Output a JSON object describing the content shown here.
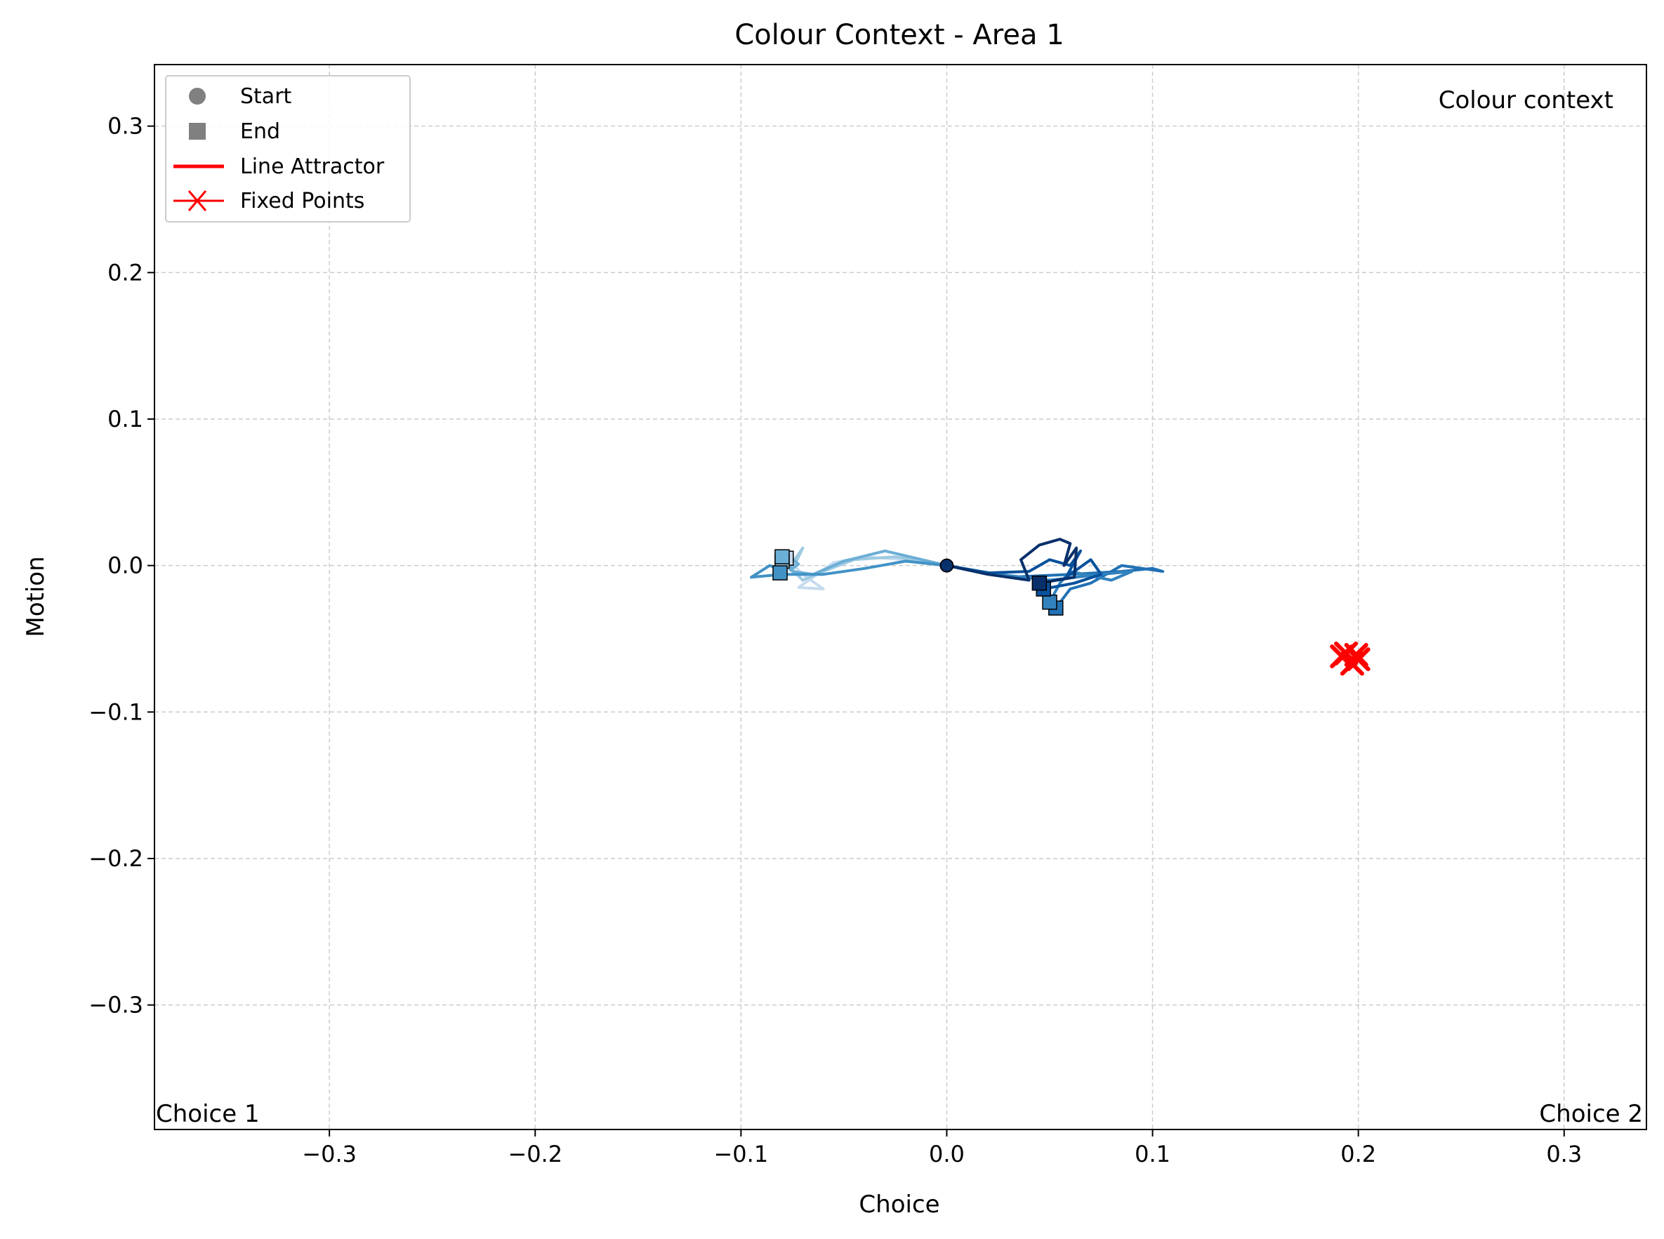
{
  "chart_data": {
    "type": "line",
    "title": "Colour Context - Area 1",
    "xlabel": "Choice",
    "ylabel": "Motion",
    "xlim": [
      -0.385,
      0.34
    ],
    "ylim": [
      -0.385,
      0.342
    ],
    "xticks": [
      -0.3,
      -0.2,
      -0.1,
      0.0,
      0.1,
      0.2,
      0.3
    ],
    "yticks": [
      -0.3,
      -0.2,
      -0.1,
      0.0,
      0.1,
      0.2,
      0.3
    ],
    "xtick_labels": [
      "−0.3",
      "−0.2",
      "−0.1",
      "0.0",
      "0.1",
      "0.2",
      "0.3"
    ],
    "ytick_labels": [
      "−0.3",
      "−0.2",
      "−0.1",
      "0.0",
      "0.1",
      "0.2",
      "0.3"
    ],
    "grid": true,
    "legend_position": "top-left",
    "legend": [
      {
        "label": "Start",
        "marker": "circle",
        "color": "#808080"
      },
      {
        "label": "End",
        "marker": "square",
        "color": "#808080"
      },
      {
        "label": "Line Attractor",
        "marker": "line",
        "color": "#ff0000"
      },
      {
        "label": "Fixed Points",
        "marker": "x-line",
        "color": "#ff0000"
      }
    ],
    "annotations": {
      "context": "Colour context",
      "left_choice": "Choice 1",
      "right_choice": "Choice 2"
    },
    "series": [
      {
        "color": "#c6dbef",
        "points": [
          [
            0,
            0
          ],
          [
            -0.02,
            0.004
          ],
          [
            -0.04,
            0.006
          ],
          [
            -0.055,
            0.002
          ],
          [
            -0.065,
            -0.008
          ],
          [
            -0.072,
            -0.015
          ],
          [
            -0.06,
            -0.016
          ],
          [
            -0.07,
            -0.006
          ],
          [
            -0.078,
            0.005
          ]
        ]
      },
      {
        "color": "#9ecae1",
        "points": [
          [
            0,
            0
          ],
          [
            -0.025,
            0.006
          ],
          [
            -0.045,
            0.004
          ],
          [
            -0.06,
            -0.004
          ],
          [
            -0.07,
            -0.01
          ],
          [
            -0.075,
            -0.003
          ],
          [
            -0.07,
            0.012
          ],
          [
            -0.074,
            0.004
          ],
          [
            -0.08,
            0.003
          ]
        ]
      },
      {
        "color": "#6baed6",
        "points": [
          [
            0,
            0
          ],
          [
            -0.03,
            0.01
          ],
          [
            -0.05,
            0.003
          ],
          [
            -0.065,
            -0.006
          ],
          [
            -0.075,
            -0.004
          ],
          [
            -0.078,
            0.008
          ],
          [
            -0.072,
            0.001
          ],
          [
            -0.076,
            -0.003
          ],
          [
            -0.08,
            0.006
          ]
        ]
      },
      {
        "color": "#4292c6",
        "points": [
          [
            0,
            0
          ],
          [
            -0.02,
            0.003
          ],
          [
            -0.04,
            -0.002
          ],
          [
            -0.06,
            -0.006
          ],
          [
            -0.08,
            -0.006
          ],
          [
            -0.095,
            -0.008
          ],
          [
            -0.086,
            0.0
          ],
          [
            -0.08,
            -0.003
          ],
          [
            -0.081,
            -0.005
          ]
        ]
      },
      {
        "color": "#2171b5",
        "points": [
          [
            0,
            0
          ],
          [
            0.03,
            -0.008
          ],
          [
            0.06,
            -0.006
          ],
          [
            0.085,
            -0.004
          ],
          [
            0.1,
            -0.002
          ],
          [
            0.105,
            -0.004
          ],
          [
            0.085,
            0.0
          ],
          [
            0.07,
            -0.012
          ],
          [
            0.06,
            -0.016
          ],
          [
            0.053,
            -0.029
          ]
        ]
      },
      {
        "color": "#3182bd",
        "points": [
          [
            0,
            0
          ],
          [
            0.025,
            -0.006
          ],
          [
            0.05,
            -0.01
          ],
          [
            0.075,
            -0.006
          ],
          [
            0.09,
            -0.004
          ],
          [
            0.08,
            -0.01
          ],
          [
            0.06,
            -0.004
          ],
          [
            0.055,
            -0.012
          ],
          [
            0.05,
            -0.025
          ]
        ]
      },
      {
        "color": "#08519c",
        "points": [
          [
            0,
            0
          ],
          [
            0.02,
            -0.005
          ],
          [
            0.04,
            -0.004
          ],
          [
            0.05,
            0.004
          ],
          [
            0.06,
            0.0
          ],
          [
            0.065,
            0.01
          ],
          [
            0.058,
            -0.008
          ],
          [
            0.07,
            0.004
          ],
          [
            0.075,
            -0.006
          ],
          [
            0.062,
            -0.012
          ],
          [
            0.047,
            -0.016
          ]
        ]
      },
      {
        "color": "#08306b",
        "points": [
          [
            0,
            0
          ],
          [
            0.02,
            -0.006
          ],
          [
            0.04,
            -0.01
          ],
          [
            0.036,
            0.004
          ],
          [
            0.045,
            0.014
          ],
          [
            0.055,
            0.018
          ],
          [
            0.06,
            0.015
          ],
          [
            0.057,
            0.0
          ],
          [
            0.063,
            0.012
          ],
          [
            0.062,
            -0.008
          ],
          [
            0.045,
            -0.012
          ]
        ]
      }
    ],
    "fixed_points": [
      [
        0.192,
        -0.062
      ],
      [
        0.197,
        -0.067
      ],
      [
        0.199,
        -0.061
      ],
      [
        0.194,
        -0.06
      ],
      [
        0.2,
        -0.064
      ]
    ]
  }
}
